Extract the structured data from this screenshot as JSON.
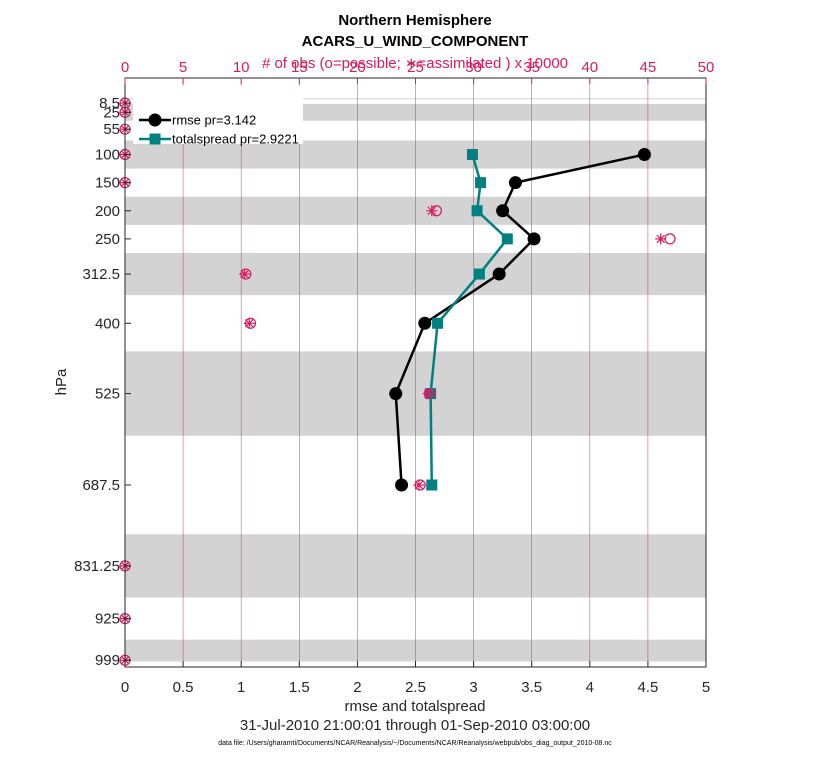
{
  "chart_data": {
    "type": "line",
    "title": "Northern Hemisphere",
    "subtitle": "ACARS_U_WIND_COMPONENT",
    "top_axis_label": "# of obs (o=possible; ∗=assimilated ) x 10000",
    "xlabel": "rmse and totalspread",
    "ylabel": "hPa",
    "date_range": "31-Jul-2010 21:00:01 through 01-Sep-2010 03:00:00",
    "footnote": "data file: /Users/gharamti/Documents/NCAR/Reanalysis/~/Documents/NCAR/Reanalysis/webpub/obs_diag_output_2010-08.nc",
    "xlim": [
      0,
      5
    ],
    "x_ticks": [
      "0",
      "0.5",
      "1",
      "1.5",
      "2",
      "2.5",
      "3",
      "3.5",
      "4",
      "4.5",
      "5"
    ],
    "top_xlim": [
      0,
      50
    ],
    "top_ticks": [
      "0",
      "5",
      "10",
      "15",
      "20",
      "25",
      "30",
      "35",
      "40",
      "45",
      "50"
    ],
    "y_reversed": true,
    "y_ticks": [
      "8.5",
      "25",
      "55",
      "100",
      "150",
      "200",
      "250",
      "312.5",
      "400",
      "525",
      "687.5",
      "831.25",
      "925",
      "999"
    ],
    "legend": {
      "location": "top-left",
      "entries": [
        "rmse pr=3.142",
        "totalspread pr=2.9221"
      ]
    },
    "series": [
      {
        "name": "rmse pr=3.142",
        "color": "#000000",
        "marker": "circle",
        "points": [
          {
            "level": "100",
            "x": 4.47
          },
          {
            "level": "150",
            "x": 3.36
          },
          {
            "level": "200",
            "x": 3.25
          },
          {
            "level": "250",
            "x": 3.52
          },
          {
            "level": "312.5",
            "x": 3.22
          },
          {
            "level": "400",
            "x": 2.58
          },
          {
            "level": "525",
            "x": 2.33
          },
          {
            "level": "687.5",
            "x": 2.38
          }
        ]
      },
      {
        "name": "totalspread pr=2.9221",
        "color": "#008080",
        "marker": "square",
        "points": [
          {
            "level": "100",
            "x": 2.99
          },
          {
            "level": "150",
            "x": 3.06
          },
          {
            "level": "200",
            "x": 3.03
          },
          {
            "level": "250",
            "x": 3.29
          },
          {
            "level": "312.5",
            "x": 3.05
          },
          {
            "level": "400",
            "x": 2.69
          },
          {
            "level": "525",
            "x": 2.63
          },
          {
            "level": "687.5",
            "x": 2.64
          }
        ]
      }
    ],
    "obs_counts": {
      "color": "#d81b60",
      "points": [
        {
          "level": "8.5",
          "possible": 0,
          "assimilated": 0
        },
        {
          "level": "25",
          "possible": 0,
          "assimilated": 0
        },
        {
          "level": "55",
          "possible": 0,
          "assimilated": 0
        },
        {
          "level": "100",
          "possible": 0,
          "assimilated": 0
        },
        {
          "level": "150",
          "possible": 0,
          "assimilated": 0
        },
        {
          "level": "200",
          "possible": 26.8,
          "assimilated": 26.4
        },
        {
          "level": "250",
          "possible": 46.9,
          "assimilated": 46.1
        },
        {
          "level": "312.5",
          "possible": 10.4,
          "assimilated": 10.3
        },
        {
          "level": "400",
          "possible": 10.8,
          "assimilated": 10.7
        },
        {
          "level": "525",
          "possible": 26.2,
          "assimilated": 26.1
        },
        {
          "level": "687.5",
          "possible": 25.4,
          "assimilated": 25.3
        },
        {
          "level": "831.25",
          "possible": 0,
          "assimilated": 0
        },
        {
          "level": "925",
          "possible": 0,
          "assimilated": 0
        },
        {
          "level": "999",
          "possible": 0,
          "assimilated": 0
        }
      ]
    }
  }
}
